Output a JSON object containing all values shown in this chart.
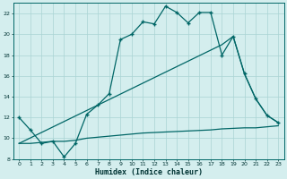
{
  "title": "",
  "xlabel": "Humidex (Indice chaleur)",
  "bg_color": "#d4eeee",
  "grid_color": "#aad4d4",
  "line_color": "#006666",
  "xlim": [
    -0.5,
    23.5
  ],
  "ylim": [
    8,
    23
  ],
  "yticks": [
    8,
    10,
    12,
    14,
    16,
    18,
    20,
    22
  ],
  "xticks": [
    0,
    1,
    2,
    3,
    4,
    5,
    6,
    7,
    8,
    9,
    10,
    11,
    12,
    13,
    14,
    15,
    16,
    17,
    18,
    19,
    20,
    21,
    22,
    23
  ],
  "line1_x": [
    0,
    1,
    2,
    3,
    4,
    5,
    6,
    7,
    8,
    9,
    10,
    11,
    12,
    13,
    14,
    15,
    16,
    17,
    18,
    19,
    20,
    21,
    22,
    23
  ],
  "line1_y": [
    12.0,
    10.8,
    9.5,
    9.7,
    8.2,
    9.5,
    12.3,
    13.2,
    14.3,
    19.5,
    20.0,
    21.2,
    21.0,
    22.7,
    22.1,
    21.1,
    22.1,
    22.1,
    18.0,
    19.8,
    16.2,
    13.8,
    12.2,
    11.5
  ],
  "line2_x": [
    0,
    1,
    2,
    3,
    4,
    5,
    6,
    7,
    8,
    9,
    10,
    11,
    12,
    13,
    14,
    15,
    16,
    17,
    18,
    19,
    20,
    21,
    22,
    23
  ],
  "line2_y": [
    9.5,
    9.5,
    9.6,
    9.7,
    9.7,
    9.8,
    10.0,
    10.1,
    10.2,
    10.3,
    10.4,
    10.5,
    10.55,
    10.6,
    10.65,
    10.7,
    10.75,
    10.8,
    10.9,
    10.95,
    11.0,
    11.0,
    11.1,
    11.2
  ],
  "line3_x": [
    0,
    18,
    19,
    20,
    21,
    22,
    23
  ],
  "line3_y": [
    9.5,
    19.0,
    19.8,
    16.2,
    13.8,
    12.2,
    11.5
  ]
}
